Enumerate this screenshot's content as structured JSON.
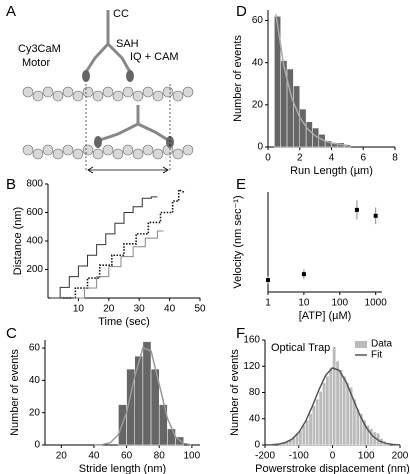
{
  "diagram": {
    "panel": "A",
    "labels": {
      "cc": "CC",
      "sah": "SAH",
      "cy3cam": "Cy3CaM",
      "motor": "Motor",
      "iq": "IQ + CAM"
    }
  },
  "chart_data": [
    {
      "type": "line",
      "panel": "B",
      "xlabel": "Time (sec)",
      "ylabel": "Distance (nm)",
      "xlim": [
        0,
        50
      ],
      "xticks": [
        10,
        20,
        30,
        40,
        50
      ],
      "ylim": [
        0,
        800
      ],
      "yticks": [
        200,
        400,
        600,
        800
      ],
      "series": [
        {
          "color": "#333333",
          "style": "solid",
          "x": [
            1,
            4,
            4,
            7,
            7,
            10,
            10,
            13,
            13,
            16,
            16,
            19,
            19,
            22,
            22,
            25,
            25,
            28,
            28,
            31,
            31,
            34,
            34,
            36
          ],
          "values": [
            0,
            0,
            75,
            75,
            150,
            150,
            225,
            225,
            300,
            300,
            375,
            375,
            450,
            450,
            525,
            525,
            600,
            600,
            640,
            640,
            700,
            700,
            710,
            710
          ]
        },
        {
          "color": "#111111",
          "style": "dotted",
          "x": [
            5,
            9,
            9,
            13,
            13,
            17,
            17,
            21,
            21,
            25,
            25,
            29,
            29,
            33,
            33,
            37,
            37,
            41,
            41,
            43,
            43,
            45
          ],
          "values": [
            0,
            0,
            70,
            70,
            140,
            140,
            230,
            230,
            300,
            300,
            380,
            380,
            450,
            450,
            530,
            530,
            600,
            600,
            680,
            680,
            760,
            740
          ]
        },
        {
          "color": "#888888",
          "style": "solid",
          "x": [
            8,
            12,
            12,
            16,
            16,
            20,
            20,
            24,
            24,
            28,
            28,
            32,
            32,
            36,
            36,
            38
          ],
          "values": [
            0,
            0,
            70,
            70,
            150,
            150,
            220,
            220,
            290,
            290,
            360,
            360,
            420,
            420,
            470,
            470
          ]
        }
      ]
    },
    {
      "type": "histogram",
      "panel": "C",
      "xlabel": "Stride length (nm)",
      "ylabel": "Number of events",
      "xlim": [
        10,
        105
      ],
      "xticks": [
        20,
        40,
        60,
        80,
        100
      ],
      "ylim": [
        0,
        65
      ],
      "yticks": [
        0,
        20,
        40,
        60
      ],
      "color": "#666666",
      "bins": [
        55,
        60,
        65,
        70,
        75,
        80,
        85,
        90,
        95
      ],
      "values": [
        25,
        47,
        55,
        64,
        47,
        25,
        10,
        5
      ],
      "fit": {
        "color": "#999999",
        "x": [
          40,
          45,
          50,
          55,
          60,
          65,
          70,
          75,
          80,
          85,
          90,
          95,
          100
        ],
        "values": [
          0,
          0.21,
          1.4,
          6.5,
          20.1,
          42.3,
          60.1,
          58.2,
          37.6,
          16.6,
          5.0,
          1.0,
          0.1
        ]
      }
    },
    {
      "type": "histogram",
      "panel": "D",
      "xlabel": "Run Length (µm)",
      "ylabel": "Number of events",
      "xlim": [
        0,
        8
      ],
      "xticks": [
        0,
        2,
        4,
        6,
        8
      ],
      "ylim": [
        0,
        65
      ],
      "yticks": [
        0,
        20,
        40,
        60
      ],
      "color": "#666666",
      "bins": [
        0.4,
        0.8,
        1.2,
        1.6,
        2,
        2.4,
        2.8,
        3.2,
        3.6,
        4,
        4.4,
        4.8,
        5.2
      ],
      "values": [
        62,
        41,
        37,
        29,
        18,
        12,
        9,
        6,
        3,
        2,
        2,
        1
      ],
      "fit": {
        "color": "#aaaaaa",
        "x": [
          0.5,
          1,
          1.5,
          2,
          2.5,
          3,
          3.5,
          4,
          5
        ],
        "values": [
          63,
          38.2,
          23.2,
          14.1,
          8.5,
          5.2,
          3.1,
          1.9,
          0.7
        ]
      }
    },
    {
      "type": "scatter",
      "panel": "E",
      "xlabel": "[ATP] (µM)",
      "ylabel": "Velocity (nm sec⁻¹)",
      "xscale": "log",
      "xlim": [
        1,
        1500
      ],
      "xticks": [
        1,
        10,
        100,
        1000
      ],
      "ylim": [
        0,
        420
      ],
      "color": "#000000",
      "x": [
        1,
        10,
        300,
        1000
      ],
      "values": [
        50,
        75,
        345,
        320
      ],
      "errors": [
        15,
        20,
        40,
        35
      ]
    },
    {
      "type": "histogram",
      "panel": "F",
      "annotation": "Optical Trap",
      "xlabel": "Powerstroke displacement (nm)",
      "ylabel": "Number of events",
      "xlim": [
        -200,
        200
      ],
      "xticks": [
        -200,
        -100,
        0,
        100,
        200
      ],
      "ylim": [
        0,
        160
      ],
      "yticks": [
        0,
        40,
        80,
        120,
        160
      ],
      "name": "Data",
      "color": "#bbbbbb",
      "bins": [
        -160,
        -150,
        -140,
        -130,
        -120,
        -110,
        -100,
        -90,
        -80,
        -70,
        -60,
        -50,
        -40,
        -30,
        -20,
        -10,
        0,
        10,
        20,
        30,
        40,
        50,
        60,
        70,
        80,
        90,
        100,
        110,
        120,
        130,
        140,
        150,
        160,
        170
      ],
      "values": [
        2,
        3,
        5,
        8,
        12,
        18,
        22,
        30,
        38,
        48,
        60,
        70,
        82,
        95,
        105,
        118,
        150,
        128,
        115,
        105,
        95,
        88,
        70,
        55,
        48,
        38,
        30,
        25,
        20,
        18,
        10,
        6,
        3
      ],
      "fit": {
        "name": "Fit",
        "color": "#555555",
        "x": [
          -200,
          -180,
          -160,
          -140,
          -120,
          -100,
          -80,
          -60,
          -40,
          -20,
          0,
          20,
          40,
          60,
          80,
          100,
          120,
          140,
          160,
          180,
          200
        ],
        "values": [
          0.11,
          0.41,
          1.31,
          3.65,
          8.9,
          19.1,
          35.8,
          58.7,
          84.4,
          106.4,
          117.5,
          113.7,
          96.4,
          71.6,
          46.6,
          26.5,
          13.2,
          5.8,
          2.2,
          0.75,
          0.22
        ]
      }
    }
  ]
}
